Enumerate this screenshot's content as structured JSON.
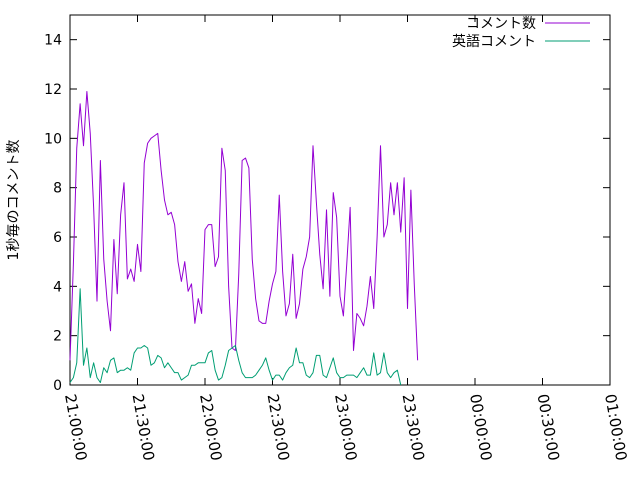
{
  "chart_data": {
    "type": "line",
    "title": "",
    "xlabel": "",
    "ylabel": "1秒毎のコメント数",
    "xlim": [
      "21:00:00",
      "01:00:00"
    ],
    "ylim": [
      0,
      15
    ],
    "x_ticks": [
      "21:00:00",
      "21:30:00",
      "22:00:00",
      "22:30:00",
      "23:00:00",
      "23:30:00",
      "00:00:00",
      "00:30:00",
      "01:00:00"
    ],
    "y_ticks": [
      0,
      2,
      4,
      6,
      8,
      10,
      12,
      14
    ],
    "grid": false,
    "legend_position": "top-right",
    "series": [
      {
        "name": "コメント数",
        "color": "#9400d3",
        "points": [
          [
            "21:00:00",
            1.0
          ],
          [
            "21:01:30",
            4.9
          ],
          [
            "21:03:00",
            9.6
          ],
          [
            "21:04:30",
            11.4
          ],
          [
            "21:06:00",
            9.7
          ],
          [
            "21:07:30",
            11.9
          ],
          [
            "21:09:00",
            10.2
          ],
          [
            "21:10:30",
            7.2
          ],
          [
            "21:12:00",
            3.4
          ],
          [
            "21:13:30",
            9.1
          ],
          [
            "21:15:00",
            5.1
          ],
          [
            "21:16:30",
            3.4
          ],
          [
            "21:18:00",
            2.2
          ],
          [
            "21:19:30",
            5.9
          ],
          [
            "21:21:00",
            3.7
          ],
          [
            "21:22:30",
            6.9
          ],
          [
            "21:24:00",
            8.2
          ],
          [
            "21:25:30",
            4.3
          ],
          [
            "21:27:00",
            4.7
          ],
          [
            "21:28:30",
            4.2
          ],
          [
            "21:30:00",
            5.7
          ],
          [
            "21:31:30",
            4.6
          ],
          [
            "21:33:00",
            9.0
          ],
          [
            "21:34:30",
            9.8
          ],
          [
            "21:36:00",
            10.0
          ],
          [
            "21:37:30",
            10.1
          ],
          [
            "21:39:00",
            10.2
          ],
          [
            "21:40:30",
            8.7
          ],
          [
            "21:42:00",
            7.5
          ],
          [
            "21:43:30",
            6.9
          ],
          [
            "21:45:00",
            7.0
          ],
          [
            "21:46:30",
            6.5
          ],
          [
            "21:48:00",
            5.0
          ],
          [
            "21:49:30",
            4.2
          ],
          [
            "21:51:00",
            5.0
          ],
          [
            "21:52:30",
            3.8
          ],
          [
            "21:54:00",
            4.1
          ],
          [
            "21:55:30",
            2.5
          ],
          [
            "21:57:00",
            3.5
          ],
          [
            "21:58:30",
            2.9
          ],
          [
            "22:00:00",
            6.3
          ],
          [
            "22:01:30",
            6.5
          ],
          [
            "22:03:00",
            6.5
          ],
          [
            "22:04:30",
            4.8
          ],
          [
            "22:06:00",
            5.2
          ],
          [
            "22:07:30",
            9.6
          ],
          [
            "22:09:00",
            8.7
          ],
          [
            "22:10:30",
            4.0
          ],
          [
            "22:12:00",
            1.5
          ],
          [
            "22:13:30",
            1.4
          ],
          [
            "22:15:00",
            4.5
          ],
          [
            "22:16:30",
            9.1
          ],
          [
            "22:18:00",
            9.2
          ],
          [
            "22:19:30",
            8.8
          ],
          [
            "22:21:00",
            5.1
          ],
          [
            "22:22:30",
            3.5
          ],
          [
            "22:24:00",
            2.6
          ],
          [
            "22:25:30",
            2.5
          ],
          [
            "22:27:00",
            2.5
          ],
          [
            "22:28:30",
            3.4
          ],
          [
            "22:30:00",
            4.1
          ],
          [
            "22:31:30",
            4.6
          ],
          [
            "22:33:00",
            7.7
          ],
          [
            "22:34:30",
            4.6
          ],
          [
            "22:36:00",
            2.8
          ],
          [
            "22:37:30",
            3.3
          ],
          [
            "22:39:00",
            5.3
          ],
          [
            "22:40:30",
            2.7
          ],
          [
            "22:42:00",
            3.3
          ],
          [
            "22:43:30",
            4.7
          ],
          [
            "22:45:00",
            5.2
          ],
          [
            "22:46:30",
            6.0
          ],
          [
            "22:48:00",
            9.7
          ],
          [
            "22:49:30",
            7.4
          ],
          [
            "22:51:00",
            5.3
          ],
          [
            "22:52:30",
            3.9
          ],
          [
            "22:54:00",
            7.1
          ],
          [
            "22:55:30",
            3.6
          ],
          [
            "22:57:00",
            7.8
          ],
          [
            "22:58:30",
            6.8
          ],
          [
            "23:00:00",
            3.6
          ],
          [
            "23:01:30",
            2.8
          ],
          [
            "23:03:00",
            4.9
          ],
          [
            "23:04:30",
            7.2
          ],
          [
            "23:06:00",
            1.4
          ],
          [
            "23:07:30",
            2.9
          ],
          [
            "23:09:00",
            2.7
          ],
          [
            "23:10:30",
            2.4
          ],
          [
            "23:12:00",
            3.2
          ],
          [
            "23:13:30",
            4.4
          ],
          [
            "23:15:00",
            3.1
          ],
          [
            "23:16:30",
            6.0
          ],
          [
            "23:18:00",
            9.7
          ],
          [
            "23:19:30",
            6.0
          ],
          [
            "23:21:00",
            6.5
          ],
          [
            "23:22:30",
            8.2
          ],
          [
            "23:24:00",
            6.9
          ],
          [
            "23:25:30",
            8.2
          ],
          [
            "23:27:00",
            6.2
          ],
          [
            "23:28:30",
            8.4
          ],
          [
            "23:30:00",
            3.1
          ],
          [
            "23:31:30",
            7.9
          ],
          [
            "23:33:00",
            4.1
          ],
          [
            "23:34:30",
            1.0
          ]
        ]
      },
      {
        "name": "英語コメント",
        "color": "#009e73",
        "points": [
          [
            "21:00:00",
            0.1
          ],
          [
            "21:01:30",
            0.3
          ],
          [
            "21:03:00",
            0.9
          ],
          [
            "21:04:30",
            3.9
          ],
          [
            "21:06:00",
            0.8
          ],
          [
            "21:07:30",
            1.5
          ],
          [
            "21:09:00",
            0.3
          ],
          [
            "21:10:30",
            0.9
          ],
          [
            "21:12:00",
            0.3
          ],
          [
            "21:13:30",
            0.1
          ],
          [
            "21:15:00",
            0.7
          ],
          [
            "21:16:30",
            0.5
          ],
          [
            "21:18:00",
            1.0
          ],
          [
            "21:19:30",
            1.1
          ],
          [
            "21:21:00",
            0.5
          ],
          [
            "21:22:30",
            0.6
          ],
          [
            "21:24:00",
            0.6
          ],
          [
            "21:25:30",
            0.7
          ],
          [
            "21:27:00",
            0.6
          ],
          [
            "21:28:30",
            1.3
          ],
          [
            "21:30:00",
            1.5
          ],
          [
            "21:31:30",
            1.5
          ],
          [
            "21:33:00",
            1.6
          ],
          [
            "21:34:30",
            1.5
          ],
          [
            "21:36:00",
            0.8
          ],
          [
            "21:37:30",
            0.9
          ],
          [
            "21:39:00",
            1.2
          ],
          [
            "21:40:30",
            1.1
          ],
          [
            "21:42:00",
            0.7
          ],
          [
            "21:43:30",
            0.9
          ],
          [
            "21:45:00",
            0.7
          ],
          [
            "21:46:30",
            0.5
          ],
          [
            "21:48:00",
            0.5
          ],
          [
            "21:49:30",
            0.2
          ],
          [
            "21:51:00",
            0.3
          ],
          [
            "21:52:30",
            0.4
          ],
          [
            "21:54:00",
            0.8
          ],
          [
            "21:55:30",
            0.8
          ],
          [
            "21:57:00",
            0.9
          ],
          [
            "21:58:30",
            0.9
          ],
          [
            "22:00:00",
            0.9
          ],
          [
            "22:01:30",
            1.3
          ],
          [
            "22:03:00",
            1.4
          ],
          [
            "22:04:30",
            0.6
          ],
          [
            "22:06:00",
            0.2
          ],
          [
            "22:07:30",
            0.3
          ],
          [
            "22:09:00",
            0.8
          ],
          [
            "22:10:30",
            1.4
          ],
          [
            "22:12:00",
            1.5
          ],
          [
            "22:13:30",
            1.6
          ],
          [
            "22:15:00",
            1.0
          ],
          [
            "22:16:30",
            0.5
          ],
          [
            "22:18:00",
            0.3
          ],
          [
            "22:19:30",
            0.3
          ],
          [
            "22:21:00",
            0.3
          ],
          [
            "22:22:30",
            0.4
          ],
          [
            "22:24:00",
            0.6
          ],
          [
            "22:25:30",
            0.8
          ],
          [
            "22:27:00",
            1.1
          ],
          [
            "22:28:30",
            0.6
          ],
          [
            "22:30:00",
            0.2
          ],
          [
            "22:31:30",
            0.4
          ],
          [
            "22:33:00",
            0.4
          ],
          [
            "22:34:30",
            0.2
          ],
          [
            "22:36:00",
            0.5
          ],
          [
            "22:37:30",
            0.7
          ],
          [
            "22:39:00",
            0.8
          ],
          [
            "22:40:30",
            1.5
          ],
          [
            "22:42:00",
            0.9
          ],
          [
            "22:43:30",
            0.9
          ],
          [
            "22:45:00",
            0.4
          ],
          [
            "22:46:30",
            0.3
          ],
          [
            "22:48:00",
            0.5
          ],
          [
            "22:49:30",
            1.2
          ],
          [
            "22:51:00",
            1.2
          ],
          [
            "22:52:30",
            0.4
          ],
          [
            "22:54:00",
            0.3
          ],
          [
            "22:55:30",
            0.7
          ],
          [
            "22:57:00",
            1.1
          ],
          [
            "22:58:30",
            0.5
          ],
          [
            "23:00:00",
            0.3
          ],
          [
            "23:01:30",
            0.3
          ],
          [
            "23:03:00",
            0.4
          ],
          [
            "23:04:30",
            0.4
          ],
          [
            "23:06:00",
            0.4
          ],
          [
            "23:07:30",
            0.3
          ],
          [
            "23:09:00",
            0.5
          ],
          [
            "23:10:30",
            0.7
          ],
          [
            "23:12:00",
            0.4
          ],
          [
            "23:13:30",
            0.4
          ],
          [
            "23:15:00",
            1.3
          ],
          [
            "23:16:30",
            0.4
          ],
          [
            "23:18:00",
            0.5
          ],
          [
            "23:19:30",
            1.3
          ],
          [
            "23:21:00",
            0.5
          ],
          [
            "23:22:30",
            0.3
          ],
          [
            "23:24:00",
            0.5
          ],
          [
            "23:25:30",
            0.6
          ],
          [
            "23:27:00",
            0.0
          ]
        ]
      }
    ]
  }
}
